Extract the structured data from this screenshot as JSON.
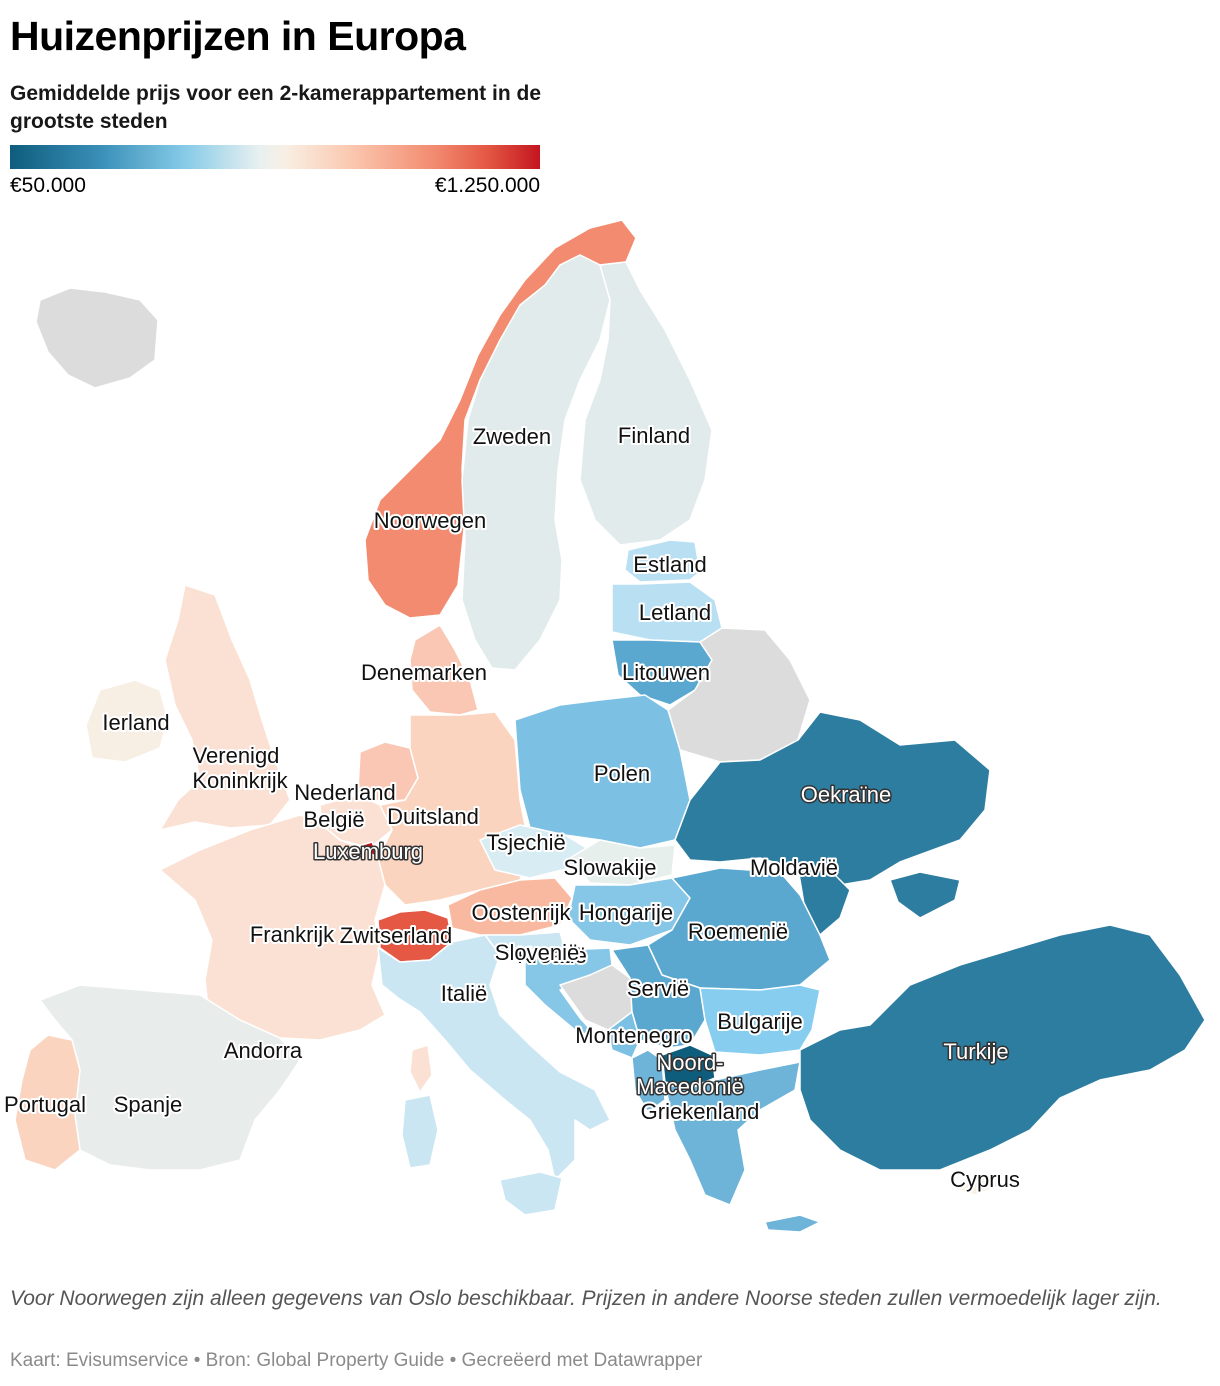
{
  "title": "Huizenprijzen in Europa",
  "subtitle": "Gemiddelde prijs voor een 2-kamerappartement in de grootste steden",
  "legend": {
    "min": "€50.000",
    "max": "€1.250.000"
  },
  "colors": {
    "no_data": "#dcdcdc",
    "border": "#ffffff"
  },
  "countries": [
    {
      "id": "iceland",
      "name": "",
      "color": "#dcdcdc"
    },
    {
      "id": "norway",
      "name": "Noorwegen",
      "color": "#f28b70"
    },
    {
      "id": "sweden",
      "name": "Zweden",
      "color": "#e1ebeb"
    },
    {
      "id": "finland",
      "name": "Finland",
      "color": "#e1ebeb"
    },
    {
      "id": "estonia",
      "name": "Estland",
      "color": "#b9e0f2"
    },
    {
      "id": "latvia",
      "name": "Letland",
      "color": "#b9e0f2"
    },
    {
      "id": "lithuania",
      "name": "Litouwen",
      "color": "#5aa7cf"
    },
    {
      "id": "belarus",
      "name": "",
      "color": "#dcdcdc"
    },
    {
      "id": "denmark",
      "name": "Denemarken",
      "color": "#f9c7b3"
    },
    {
      "id": "ireland",
      "name": "Ierland",
      "color": "#f8efe4"
    },
    {
      "id": "uk",
      "name": "Verenigd Koninkrijk",
      "color": "#fbe1d3"
    },
    {
      "id": "netherlands",
      "name": "Nederland",
      "color": "#f9c7b3"
    },
    {
      "id": "belgium",
      "name": "België",
      "color": "#fbe1d3"
    },
    {
      "id": "luxembourg",
      "name": "Luxemburg",
      "color": "#c4151f"
    },
    {
      "id": "germany",
      "name": "Duitsland",
      "color": "#fbd4c0"
    },
    {
      "id": "poland",
      "name": "Polen",
      "color": "#7cc0e4"
    },
    {
      "id": "ukraine",
      "name": "Oekraïne",
      "color": "#2c7da0"
    },
    {
      "id": "czechia",
      "name": "Tsjechië",
      "color": "#d8ecf4"
    },
    {
      "id": "slovakia",
      "name": "Slowakije",
      "color": "#e6efec"
    },
    {
      "id": "moldova",
      "name": "Moldavië",
      "color": "#2c7da0"
    },
    {
      "id": "france",
      "name": "Frankrijk",
      "color": "#fbe1d3"
    },
    {
      "id": "switzerland",
      "name": "Zwitserland",
      "color": "#e45844"
    },
    {
      "id": "austria",
      "name": "Oostenrijk",
      "color": "#f9b9a0"
    },
    {
      "id": "hungary",
      "name": "Hongarije",
      "color": "#86c6e6"
    },
    {
      "id": "romania",
      "name": "Roemenië",
      "color": "#5aa7cf"
    },
    {
      "id": "slovenia",
      "name": "Slovenië",
      "color": "#cbe6f3"
    },
    {
      "id": "croatia",
      "name": "Kroatië",
      "color": "#86c6e6"
    },
    {
      "id": "bosnia",
      "name": "",
      "color": "#dcdcdc"
    },
    {
      "id": "serbia",
      "name": "Servië",
      "color": "#5aa7cf"
    },
    {
      "id": "montenegro",
      "name": "Montenegro",
      "color": "#7cc0e4"
    },
    {
      "id": "north_macedonia",
      "name": "Noord-Macedonië",
      "color": "#0e5d7d"
    },
    {
      "id": "bulgaria",
      "name": "Bulgarije",
      "color": "#86cdf0"
    },
    {
      "id": "greece",
      "name": "Griekenland",
      "color": "#6eb3d8"
    },
    {
      "id": "turkey",
      "name": "Turkije",
      "color": "#2c7da0"
    },
    {
      "id": "cyprus",
      "name": "Cyprus",
      "color": "#f8efe4"
    },
    {
      "id": "italy",
      "name": "Italië",
      "color": "#cbe6f3"
    },
    {
      "id": "andorra",
      "name": "Andorra",
      "color": "#f8efe4"
    },
    {
      "id": "spain",
      "name": "Spanje",
      "color": "#e8ecea"
    },
    {
      "id": "portugal",
      "name": "Portugal",
      "color": "#fbd4c0"
    }
  ],
  "footnote": "Voor Noorwegen zijn alleen gegevens van Oslo beschikbaar. Prijzen in andere Noorse steden zullen vermoedelijk lager zijn.",
  "credits": "Kaart: Evisumservice • Bron: Global Property Guide • Gecreëerd met Datawrapper"
}
